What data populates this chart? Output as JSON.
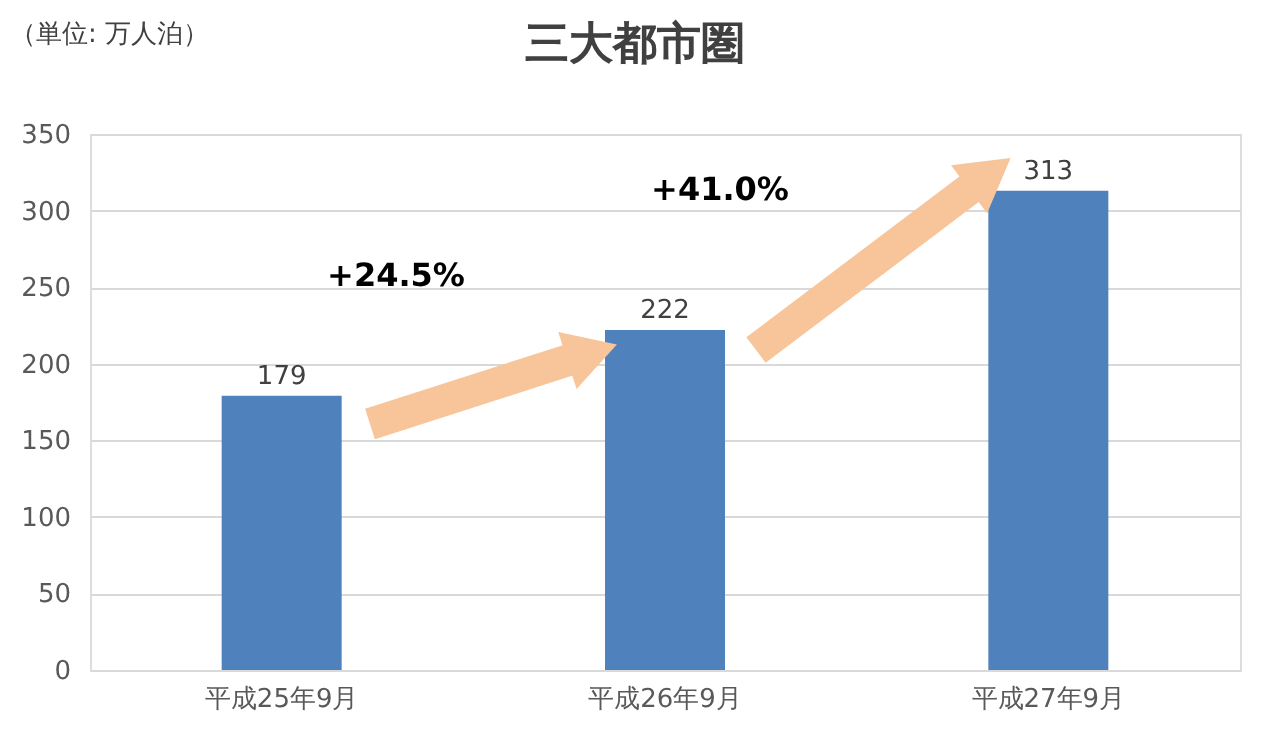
{
  "chart_data": {
    "type": "bar",
    "title": "三大都市圏",
    "categories": [
      "平成25年9月",
      "平成26年9月",
      "平成27年9月"
    ],
    "values": [
      179,
      222,
      313
    ],
    "color": "#4f81bd",
    "ylim": [
      0,
      350
    ],
    "yticks": [
      0,
      50,
      100,
      150,
      200,
      250,
      300,
      350
    ],
    "grid": "y",
    "data_labels": true,
    "annotations": [
      "（単位: 万人泊）",
      "+24.5%",
      "+41.0%"
    ]
  }
}
